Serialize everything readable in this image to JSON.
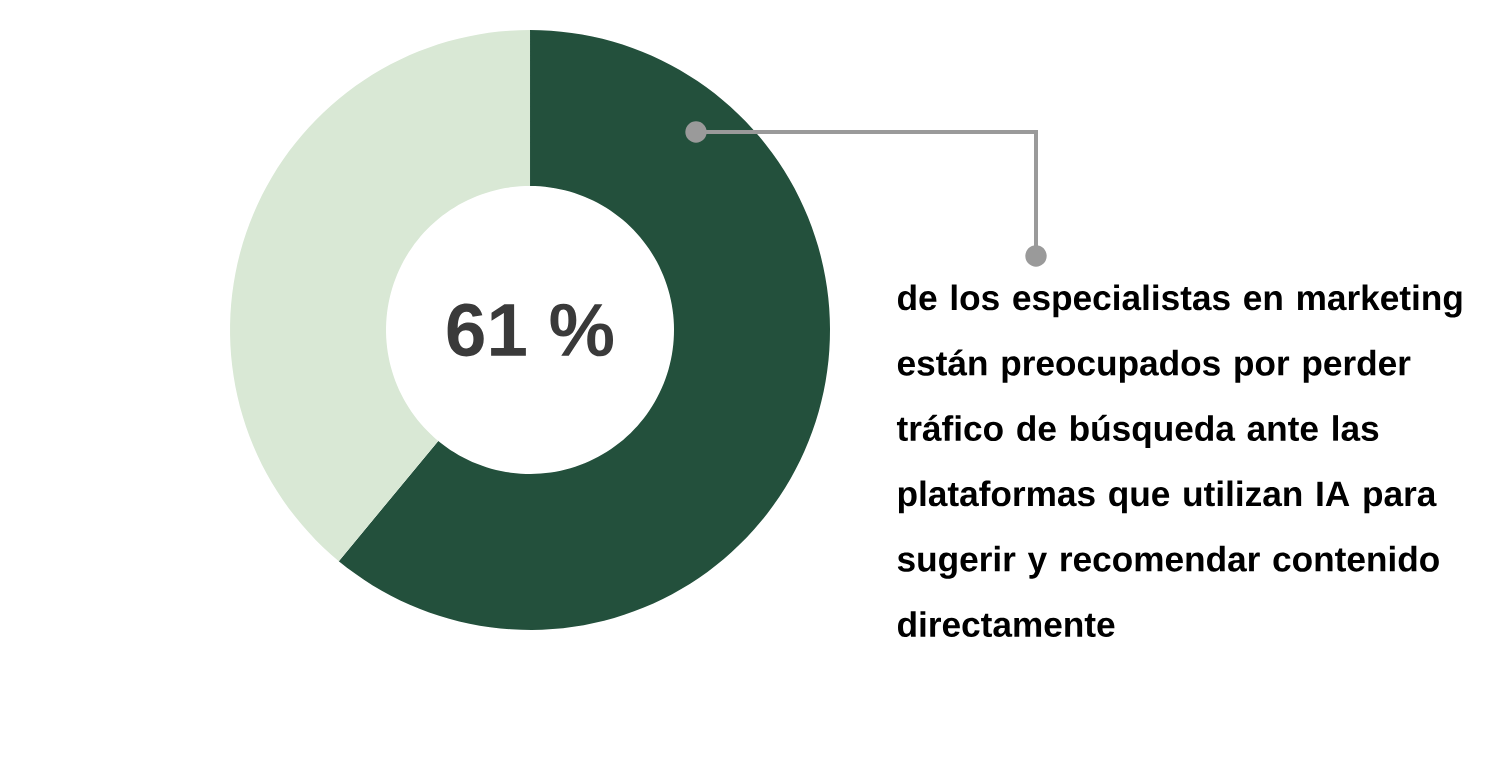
{
  "chart_data": {
    "type": "donut",
    "categories": [
      null,
      null
    ],
    "values": [
      61,
      39
    ],
    "colors": [
      "#23503c",
      "#d9e8d5"
    ],
    "value_labels": [
      "61 %",
      null
    ],
    "annotations": [
      "de los especialistas en marketing están preocupados por perder tráfico de búsqueda ante las plataformas que utilizan IA para sugerir y recomendar contenido directamente"
    ]
  }
}
